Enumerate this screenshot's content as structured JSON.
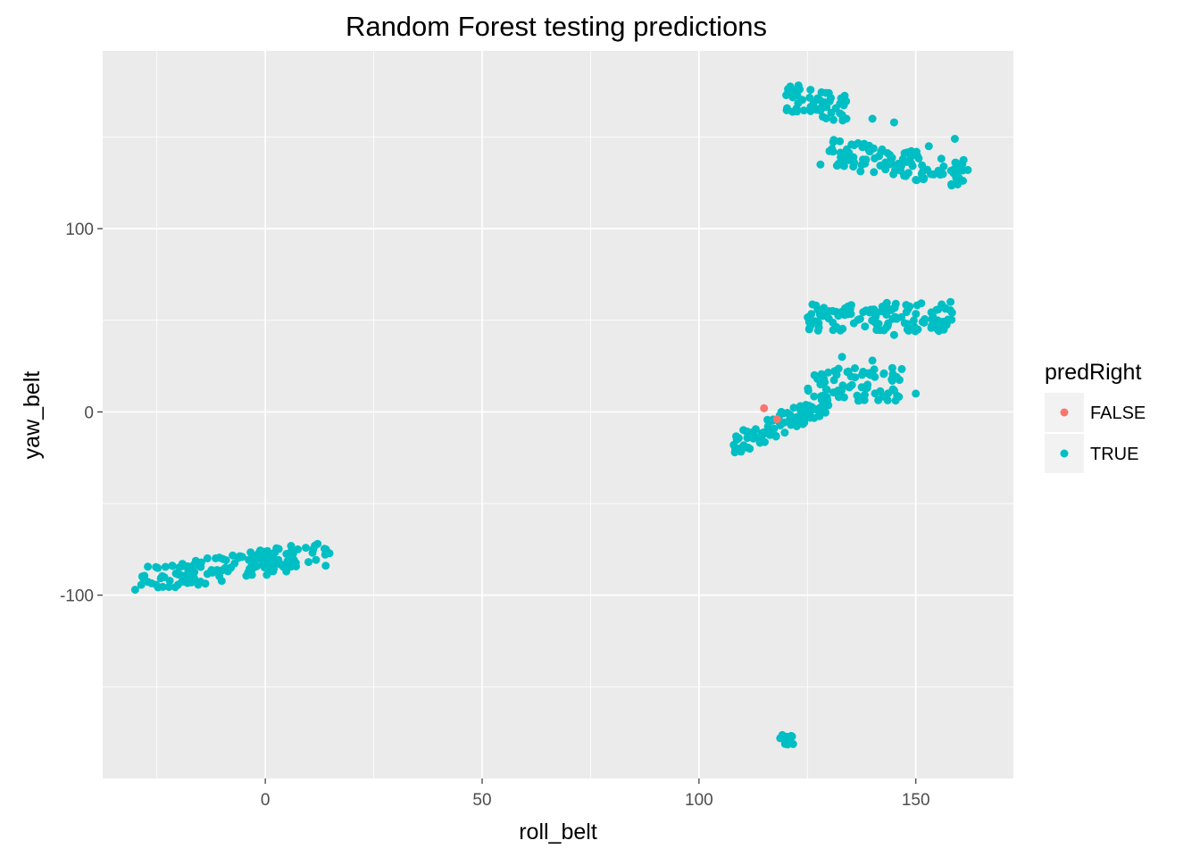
{
  "chart_data": {
    "type": "scatter",
    "title": "Random Forest testing predictions",
    "xlabel": "roll_belt",
    "ylabel": "yaw_belt",
    "xlim": [
      -37.5,
      172.5
    ],
    "ylim": [
      -200,
      197
    ],
    "x_ticks": [
      0,
      50,
      100,
      150
    ],
    "x_tick_labels": [
      "0",
      "50",
      "100",
      "150"
    ],
    "y_ticks": [
      -100,
      0,
      100
    ],
    "y_tick_labels": [
      "-100",
      "0",
      "100"
    ],
    "x_minor_ticks": [
      -25,
      25,
      75,
      125
    ],
    "y_minor_ticks": [
      -150,
      -50,
      50,
      150
    ],
    "grid": true,
    "panel_background": "#ebebeb",
    "legend_position": "right",
    "legend": {
      "title": "predRight",
      "entries": [
        {
          "label": "FALSE",
          "color": "#f8766d"
        },
        {
          "label": "TRUE",
          "color": "#00bfc4"
        }
      ]
    },
    "series": [
      {
        "name": "FALSE",
        "color": "#f8766d",
        "points": [
          [
            115.0,
            2.0
          ],
          [
            118.0,
            -4.0
          ]
        ]
      },
      {
        "name": "TRUE",
        "color": "#00bfc4",
        "clusters": [
          {
            "x_range": [
              -29,
              15
            ],
            "y_center_at_xmin": -92,
            "y_center_at_xmax": -77,
            "spread": 7,
            "n": 150
          },
          {
            "x_range": [
              108,
              130
            ],
            "y_center_at_xmin": -18,
            "y_center_at_xmax": 5,
            "spread": 6,
            "n": 90
          },
          {
            "x_range": [
              125,
              147
            ],
            "y_center_at_xmin": 15,
            "y_center_at_xmax": 15,
            "spread": 9,
            "n": 70
          },
          {
            "x_range": [
              125,
              159
            ],
            "y_center_at_xmin": 52,
            "y_center_at_xmax": 52,
            "spread": 8,
            "n": 120
          },
          {
            "x_range": [
              120,
              134
            ],
            "y_center_at_xmin": 172,
            "y_center_at_xmax": 165,
            "spread": 8,
            "n": 60
          },
          {
            "x_range": [
              130,
              162
            ],
            "y_center_at_xmin": 142,
            "y_center_at_xmax": 130,
            "spread": 8,
            "n": 110
          },
          {
            "x_range": [
              118,
              122
            ],
            "y_center_at_xmin": -177,
            "y_center_at_xmax": -180,
            "spread": 3,
            "n": 12
          }
        ],
        "points": [
          [
            -30,
            -97
          ],
          [
            14,
            -75
          ],
          [
            108,
            -18
          ],
          [
            119,
            0
          ],
          [
            128,
            15
          ],
          [
            140,
            28
          ],
          [
            150,
            10
          ],
          [
            130,
            55
          ],
          [
            158,
            60
          ],
          [
            155,
            45
          ],
          [
            145,
            42
          ],
          [
            133,
            30
          ],
          [
            134,
            160
          ],
          [
            140,
            160
          ],
          [
            145,
            158
          ],
          [
            153,
            145
          ],
          [
            159,
            149
          ],
          [
            162,
            132
          ],
          [
            128,
            135
          ]
        ]
      }
    ]
  }
}
